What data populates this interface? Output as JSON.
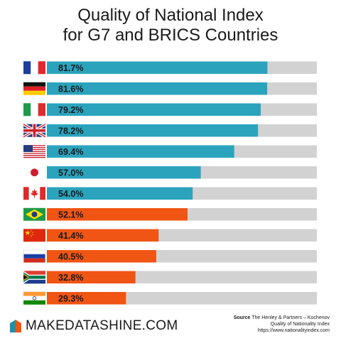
{
  "header": {
    "title_line1": "Quality of National Index",
    "title_line2": "for G7 and BRICS Countries"
  },
  "colors": {
    "g7": "#2ba3bd",
    "brics": "#f05514",
    "track": "#d2d2d2"
  },
  "chart_data": {
    "type": "bar",
    "orientation": "horizontal",
    "title": "Quality of National Index for G7 and BRICS Countries",
    "xlim": [
      0,
      100
    ],
    "categories": [
      "France",
      "Germany",
      "Italy",
      "United Kingdom",
      "United States",
      "Japan",
      "Canada",
      "Brazil",
      "China",
      "Russia",
      "South Africa",
      "India"
    ],
    "values": [
      81.7,
      81.6,
      79.2,
      78.2,
      69.4,
      57.0,
      54.0,
      52.1,
      41.4,
      40.5,
      32.8,
      29.3
    ],
    "labels": [
      "81.7%",
      "81.6%",
      "79.2%",
      "78.2%",
      "69.4%",
      "57.0%",
      "54.0%",
      "52.1%",
      "41.4%",
      "40.5%",
      "32.8%",
      "29.3%"
    ],
    "groups": [
      "G7",
      "G7",
      "G7",
      "G7",
      "G7",
      "G7",
      "G7",
      "BRICS",
      "BRICS",
      "BRICS",
      "BRICS",
      "BRICS"
    ],
    "flags": [
      "flag-france-icon",
      "flag-germany-icon",
      "flag-italy-icon",
      "flag-uk-icon",
      "flag-usa-icon",
      "flag-japan-icon",
      "flag-canada-icon",
      "flag-brazil-icon",
      "flag-china-icon",
      "flag-russia-icon",
      "flag-south-africa-icon",
      "flag-india-icon"
    ]
  },
  "footer": {
    "logo_text": "MAKEDATASHINE.COM",
    "logo_icon": "makedatashine-logo-icon",
    "source_label": "Source",
    "source_line1": "The Henley & Partners – Kochenov",
    "source_line2": "Quality of Nationality Index",
    "source_line3": "https://www.nationalityindex.com"
  }
}
